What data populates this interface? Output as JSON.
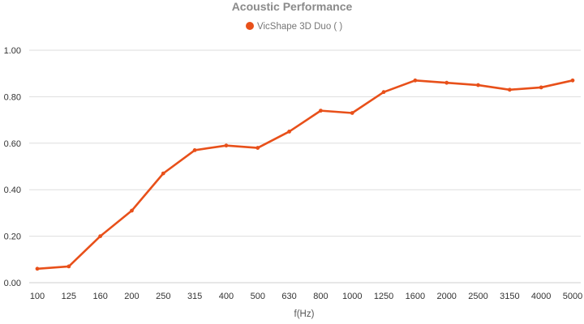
{
  "chart_data": {
    "type": "line",
    "title": "Acoustic Performance",
    "xlabel": "f(Hz)",
    "ylabel": "",
    "categories": [
      "100",
      "125",
      "160",
      "200",
      "250",
      "315",
      "400",
      "500",
      "630",
      "800",
      "1000",
      "1250",
      "1600",
      "2000",
      "2500",
      "3150",
      "4000",
      "5000"
    ],
    "y_tick_labels": [
      "0.00",
      "0.20",
      "0.40",
      "0.60",
      "0.80",
      "1.00"
    ],
    "ylim": [
      0,
      1.0
    ],
    "grid": true,
    "legend_position": "top-center",
    "series": [
      {
        "name": "VicShape 3D Duo ( )",
        "color": "#e8501a",
        "values": [
          0.06,
          0.07,
          0.2,
          0.31,
          0.47,
          0.57,
          0.59,
          0.58,
          0.65,
          0.74,
          0.73,
          0.82,
          0.87,
          0.86,
          0.85,
          0.83,
          0.84,
          0.87
        ]
      }
    ]
  }
}
